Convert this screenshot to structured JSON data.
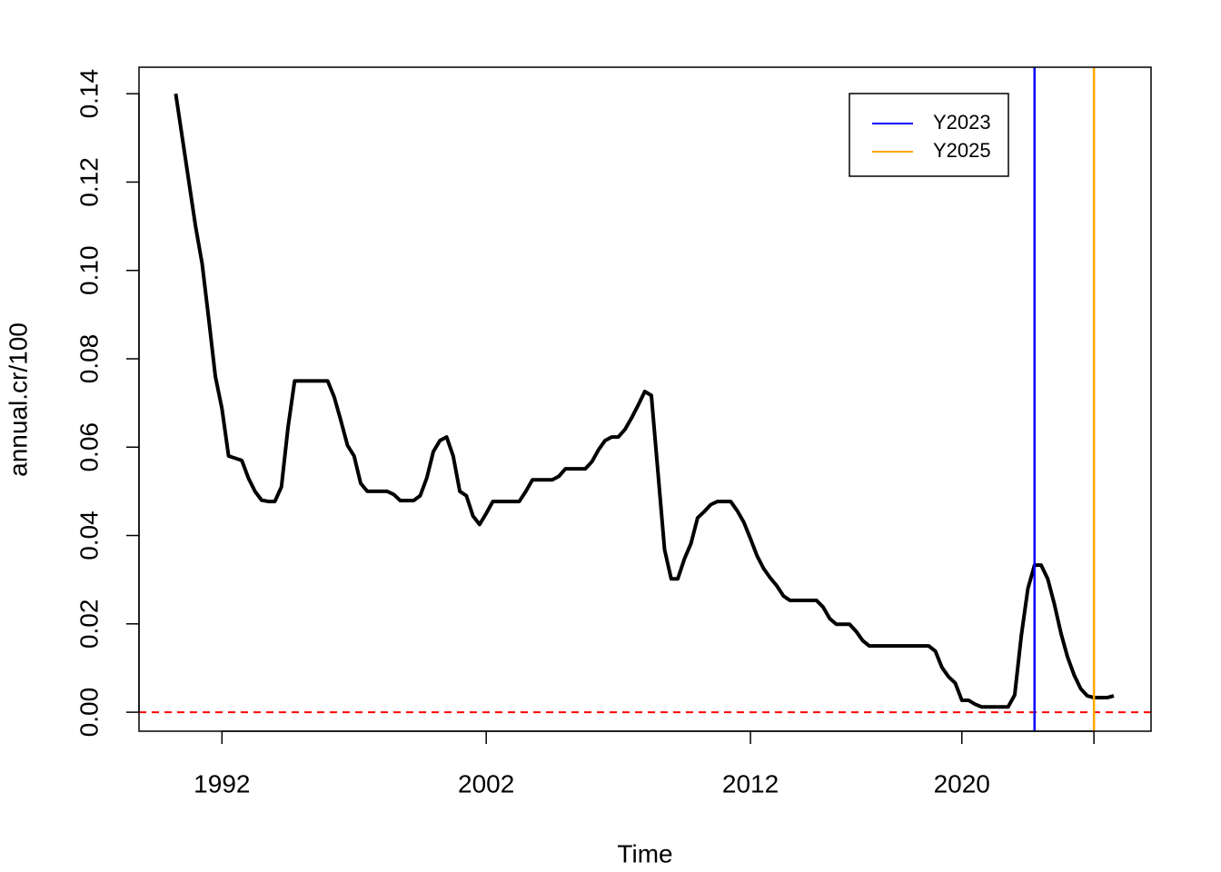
{
  "chart_data": {
    "type": "line",
    "x_label": "Time",
    "y_label": "annual.cr/100",
    "x": [
      1990.25,
      1990.5,
      1990.75,
      1991.0,
      1991.25,
      1991.5,
      1991.75,
      1992.0,
      1992.25,
      1992.75,
      1993.0,
      1993.25,
      1993.5,
      1993.75,
      1994.0,
      1994.25,
      1994.5,
      1994.75,
      1996.0,
      1996.25,
      1996.5,
      1996.75,
      1997.0,
      1997.25,
      1997.5,
      1998.25,
      1998.5,
      1998.75,
      1999.25,
      1999.5,
      1999.75,
      2000.0,
      2000.25,
      2000.5,
      2000.75,
      2001.0,
      2001.25,
      2001.5,
      2001.75,
      2002.0,
      2002.25,
      2003.25,
      2003.5,
      2003.75,
      2004.5,
      2004.75,
      2005.0,
      2005.75,
      2006.0,
      2006.25,
      2006.5,
      2006.75,
      2007.0,
      2007.25,
      2007.5,
      2007.75,
      2008.0,
      2008.25,
      2008.5,
      2008.75,
      2009.0,
      2009.25,
      2009.5,
      2009.75,
      2010.0,
      2010.25,
      2010.5,
      2010.75,
      2011.25,
      2011.5,
      2011.75,
      2012.0,
      2012.25,
      2012.5,
      2012.75,
      2013.0,
      2013.25,
      2013.5,
      2014.5,
      2014.75,
      2015.0,
      2015.25,
      2015.75,
      2016.0,
      2016.25,
      2016.5,
      2018.75,
      2019.0,
      2019.25,
      2019.5,
      2019.75,
      2020.0,
      2020.25,
      2020.5,
      2020.75,
      2021.75,
      2022.0,
      2022.25,
      2022.5,
      2022.75,
      2023.0,
      2023.25,
      2023.5,
      2023.75,
      2024.0,
      2024.25,
      2024.5,
      2024.75,
      2025.0,
      2025.5,
      2025.75
    ],
    "series": [
      {
        "color": "#000000",
        "values": [
          0.14,
          0.13,
          0.12,
          0.11,
          0.1015,
          0.089,
          0.076,
          0.0687,
          0.058,
          0.057,
          0.053,
          0.05,
          0.048,
          0.0477,
          0.0477,
          0.051,
          0.0645,
          0.075,
          0.075,
          0.0713,
          0.066,
          0.0604,
          0.058,
          0.0518,
          0.05,
          0.05,
          0.0493,
          0.0479,
          0.0479,
          0.049,
          0.053,
          0.059,
          0.0615,
          0.0623,
          0.058,
          0.05,
          0.049,
          0.0444,
          0.0425,
          0.045,
          0.0477,
          0.0477,
          0.05,
          0.0526,
          0.0526,
          0.0534,
          0.0551,
          0.0551,
          0.0567,
          0.0594,
          0.0615,
          0.0623,
          0.0623,
          0.064,
          0.0666,
          0.0695,
          0.0726,
          0.0717,
          0.0543,
          0.0368,
          0.0302,
          0.0302,
          0.0347,
          0.0382,
          0.044,
          0.0454,
          0.047,
          0.0477,
          0.0477,
          0.0456,
          0.043,
          0.0393,
          0.0354,
          0.0325,
          0.0304,
          0.0286,
          0.0263,
          0.0253,
          0.0253,
          0.0238,
          0.0212,
          0.0199,
          0.0199,
          0.0183,
          0.0162,
          0.015,
          0.015,
          0.0138,
          0.0101,
          0.008,
          0.0066,
          0.0027,
          0.0027,
          0.0018,
          0.0012,
          0.0012,
          0.0039,
          0.0173,
          0.028,
          0.0333,
          0.0333,
          0.0302,
          0.0245,
          0.0179,
          0.0125,
          0.0084,
          0.0053,
          0.0037,
          0.0033,
          0.0033,
          0.0037
        ]
      }
    ],
    "vlines": [
      {
        "name": "Y2023",
        "color": "#0000ff",
        "x": 2022.75
      },
      {
        "name": "Y2025",
        "color": "#ffa500",
        "x": 2025
      }
    ],
    "hline": {
      "y": 0,
      "color": "#ff0000",
      "dashed": true
    },
    "xlim": [
      1988.86,
      2027.16
    ],
    "ylim": [
      -0.0043,
      0.146
    ],
    "xticks": [
      1992,
      2002,
      2012,
      2020
    ],
    "xminor_ticks": [
      2025
    ],
    "yticks": [
      {
        "value": 0,
        "label": "0.00"
      },
      0.02,
      0.04,
      0.06,
      0.08,
      {
        "value": 0.1,
        "label": "0.10"
      },
      0.12,
      0.14
    ],
    "legend": "topright",
    "grid": false
  }
}
